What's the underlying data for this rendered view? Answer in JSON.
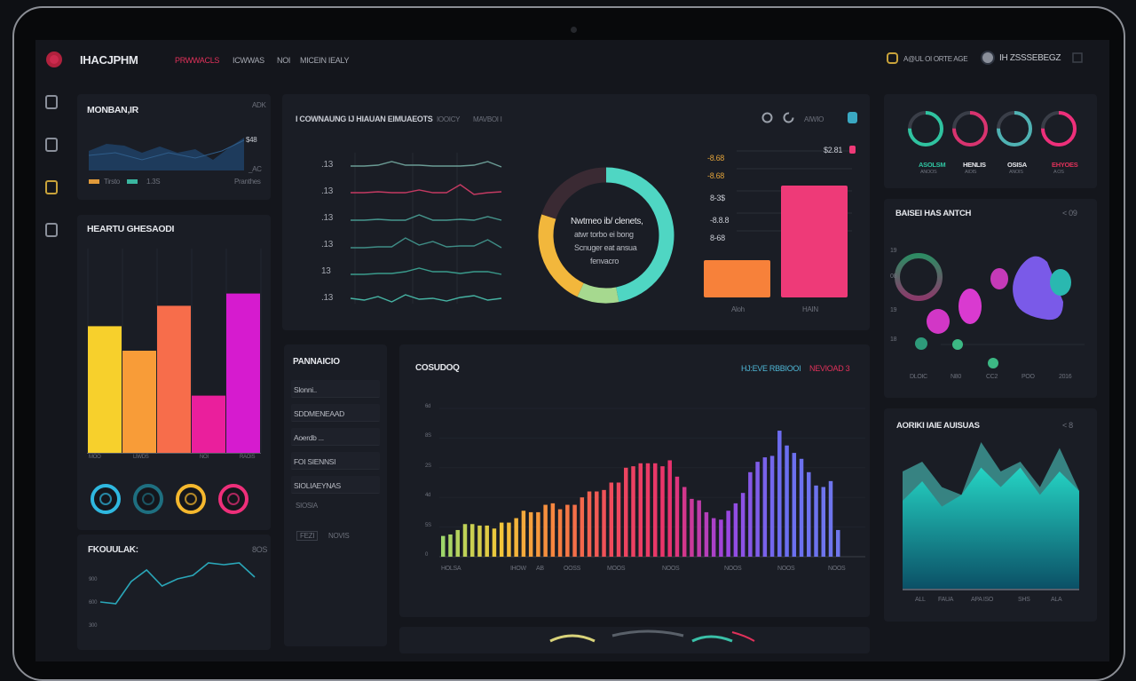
{
  "topbar": {
    "brand": "IHACJPHM",
    "nav": [
      {
        "label": "PRWWACLS",
        "active": true
      },
      {
        "label": "ICWWAS"
      },
      {
        "label": "NOI"
      },
      {
        "label": "MICEIN IEALY"
      }
    ],
    "right_text": "A@UL OI ORTE AGE",
    "user_text": "IH ZSSSEBEGZ",
    "accent": "#e0315a"
  },
  "sidebar": {
    "icons": [
      "dashboard-icon",
      "stats-icon",
      "folder-icon",
      "settings-icon"
    ]
  },
  "mini_area": {
    "title": "MONBAN,IR",
    "badge": "ADK",
    "val_hi": "$48",
    "val_lo": "_AC",
    "legend": [
      "Tirsto",
      "1.3S"
    ],
    "footer": "Pranthes"
  },
  "bar_panel": {
    "title": "HEARTU GHESAODI",
    "values": [
      62,
      50,
      72,
      28,
      78
    ],
    "colors": [
      "#f7d02c",
      "#f89c38",
      "#f76d4b",
      "#ea1f9c",
      "#d61bcf"
    ],
    "xlabels": [
      "MOO",
      "LIWDS",
      "NOI",
      "RAOIS"
    ]
  },
  "rings_left": {
    "colors": [
      "#2fb8e0",
      "#1e6f80",
      "#f5b82e",
      "#ee2f7a"
    ]
  },
  "line_panel": {
    "title": "FKOUULAK:",
    "badge": "8OS",
    "ylabels": [
      "900",
      "600",
      "300"
    ],
    "points": [
      12,
      10,
      35,
      48,
      30,
      38,
      42,
      56,
      54,
      56,
      40
    ]
  },
  "center": {
    "title": "I COWNAUNG IJ HIAUAN EIMUAEOTS",
    "tabs": [
      "IOOICY",
      "MAVBOI I"
    ],
    "controls": {
      "label": "AIWIO"
    },
    "lines": {
      "ylabels": [
        ".13",
        ".13",
        ".13",
        ".13",
        "13",
        ".13"
      ],
      "series": [
        {
          "color": "#6b9c95",
          "values": [
            5,
            5,
            6,
            10,
            6,
            6,
            5,
            5,
            5,
            6,
            10,
            4
          ]
        },
        {
          "color": "#c43a62",
          "values": [
            5,
            5,
            6,
            5,
            5,
            8,
            5,
            5,
            14,
            3,
            5,
            6
          ]
        },
        {
          "color": "#46978e",
          "values": [
            4,
            4,
            5,
            4,
            4,
            10,
            4,
            4,
            5,
            4,
            8,
            4
          ]
        },
        {
          "color": "#3f8d86",
          "values": [
            3,
            3,
            4,
            4,
            14,
            6,
            10,
            4,
            5,
            5,
            12,
            3
          ]
        },
        {
          "color": "#3a9b8c",
          "values": [
            3,
            3,
            4,
            4,
            6,
            10,
            6,
            6,
            4,
            6,
            6,
            3
          ]
        },
        {
          "color": "#46b3a3",
          "values": [
            6,
            4,
            8,
            2,
            10,
            5,
            6,
            3,
            7,
            9,
            4,
            6
          ]
        }
      ]
    },
    "donut": {
      "text": [
        "Nwtmeo ib/ clenets,",
        "atwr torbo ei bong",
        "Scnuger eat ansua",
        "fenvacro"
      ],
      "segments": [
        {
          "value": 47,
          "color": "#4fd6c3"
        },
        {
          "value": 10,
          "color": "#a6d98f"
        },
        {
          "value": 23,
          "color": "#f2b73c"
        },
        {
          "value": 20,
          "color": "#3a2a33"
        }
      ]
    },
    "bars": {
      "ylabels": [
        "-8.68",
        "-8.68",
        "8-3$",
        "-8.8.8",
        "8-68"
      ],
      "top_label": "$2.81",
      "categories": [
        "Aloh",
        "HAIN"
      ],
      "values": [
        30,
        90
      ],
      "colors": [
        "#f7813a",
        "#ee3a78"
      ]
    }
  },
  "list_panel": {
    "title": "PANNAICIO",
    "items": [
      "Slonni..",
      "SDDMENEAAD",
      "Aoerdb ...",
      "FOI SIENNSI",
      "SIOLIAEYNAS"
    ],
    "sub": "SIOSIA",
    "footer": [
      "FEZI",
      "NOVIS"
    ]
  },
  "chart_data": {
    "type": "bar",
    "title": "COSUDOQ",
    "legend": [
      {
        "label": "HJ:EVE RBBIOOI",
        "color": "#4fb7d6"
      },
      {
        "label": "NEVIOAD 3",
        "color": "#e0315a"
      }
    ],
    "ylabels": [
      "0",
      "5S",
      "4d",
      "2S",
      "8S",
      "6d"
    ],
    "ylim": [
      0,
      100
    ],
    "xlabels": [
      "HOLSA",
      "IHOW",
      "AB",
      "OOSS",
      "MOOS",
      "NOOS",
      "NOOS",
      "NOOS",
      "NOOS"
    ],
    "values": [
      14,
      15,
      18,
      22,
      22,
      21,
      21,
      19,
      23,
      23,
      26,
      31,
      30,
      30,
      35,
      36,
      32,
      35,
      35,
      40,
      44,
      44,
      45,
      50,
      50,
      60,
      61,
      63,
      63,
      63,
      61,
      65,
      54,
      47,
      39,
      38,
      30,
      26,
      25,
      31,
      36,
      43,
      57,
      64,
      67,
      68,
      85,
      75,
      70,
      66,
      57,
      48,
      47,
      51,
      18
    ],
    "gradient": [
      "#9ed66a",
      "#f2c83a",
      "#f7823f",
      "#ee4a5c",
      "#e8326c",
      "#9b45e0",
      "#6b6ef0",
      "#6f76ec"
    ]
  },
  "rings_right": {
    "items": [
      {
        "label": "ASOLSM",
        "sub": "ANOOS",
        "color": "#2fc3a0",
        "label_color": "#2fc3a0"
      },
      {
        "label": "HENLIS",
        "sub": "AIOIS",
        "color": "#d9336f",
        "label_color": "#e8e9ed"
      },
      {
        "label": "OSISA",
        "sub": "ANOIS",
        "color": "#4fb2b3",
        "label_color": "#e8e9ed"
      },
      {
        "label": "EHYOES",
        "sub": "A OS",
        "color": "#ee2f7a",
        "label_color": "#e0315a"
      }
    ]
  },
  "bubble_panel": {
    "title": "BAISEI HAS ANTCH",
    "badge": "< 09",
    "ylabels": [
      "19",
      "08",
      "19",
      "18"
    ],
    "xlabels": [
      "DLOIC",
      "N80",
      "CC2",
      "POO",
      "2016"
    ]
  },
  "area_panel": {
    "title": "AORIKI IAIE AUISUAS",
    "badge": "< 8",
    "xlabels": [
      "ALL",
      "FAUA",
      "APA ISO",
      "SHS",
      "ALA"
    ],
    "back": [
      60,
      65,
      52,
      48,
      75,
      60,
      65,
      52,
      72,
      50
    ],
    "front": [
      45,
      55,
      42,
      48,
      62,
      52,
      62,
      48,
      60,
      50
    ]
  }
}
